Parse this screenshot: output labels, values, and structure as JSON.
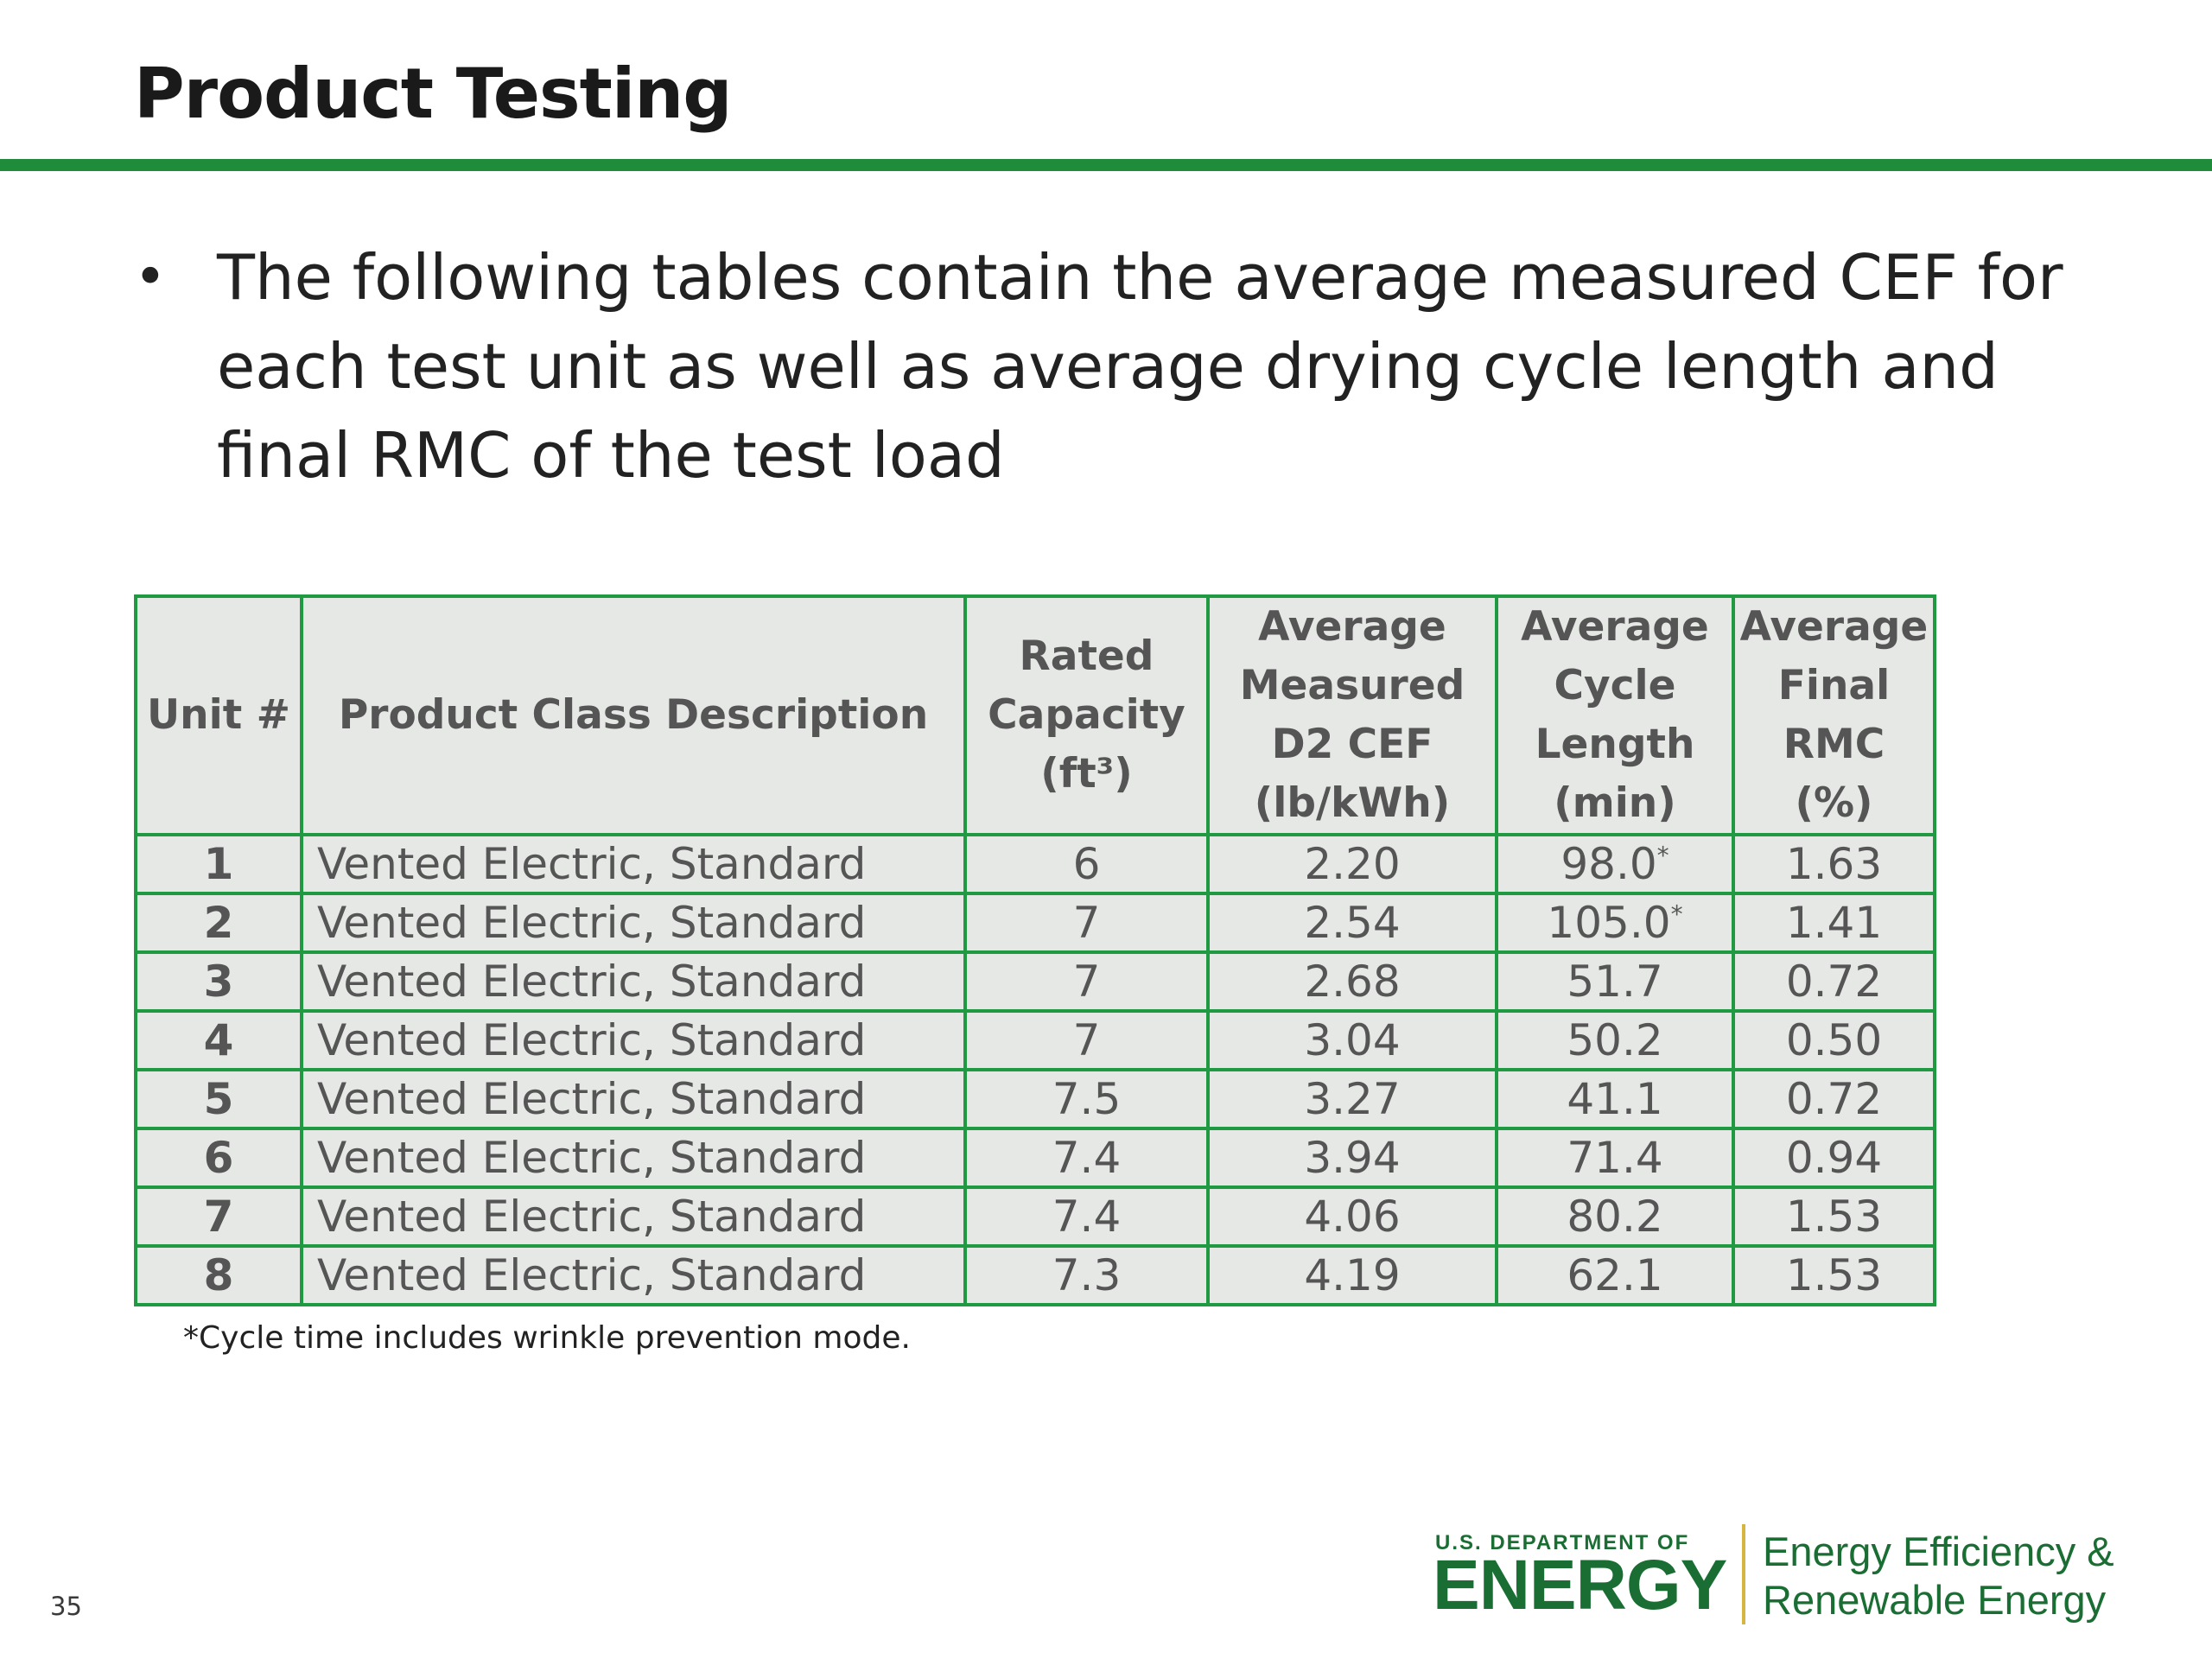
{
  "slide": {
    "title": "Product Testing",
    "page_number": "35"
  },
  "bullets": [
    "The following tables contain the average measured CEF for each test unit as well as average drying cycle length and final RMC of the test load"
  ],
  "table": {
    "headers": [
      [
        "Unit #"
      ],
      [
        "Product Class Description"
      ],
      [
        "Rated",
        "Capacity",
        "(ft³)"
      ],
      [
        "Average",
        "Measured",
        "D2 CEF",
        "(lb/kWh)"
      ],
      [
        "Average",
        "Cycle",
        "Length",
        "(min)"
      ],
      [
        "Average",
        "Final",
        "RMC",
        "(%)"
      ]
    ],
    "rows": [
      {
        "unit": "1",
        "description": "Vented Electric, Standard",
        "capacity": "6",
        "cef": "2.20",
        "cycle_length": "98.0",
        "cycle_mark": "*",
        "rmc": "1.63"
      },
      {
        "unit": "2",
        "description": "Vented Electric, Standard",
        "capacity": "7",
        "cef": "2.54",
        "cycle_length": "105.0",
        "cycle_mark": "*",
        "rmc": "1.41"
      },
      {
        "unit": "3",
        "description": "Vented Electric, Standard",
        "capacity": "7",
        "cef": "2.68",
        "cycle_length": "51.7",
        "cycle_mark": "",
        "rmc": "0.72"
      },
      {
        "unit": "4",
        "description": "Vented Electric, Standard",
        "capacity": "7",
        "cef": "3.04",
        "cycle_length": "50.2",
        "cycle_mark": "",
        "rmc": "0.50"
      },
      {
        "unit": "5",
        "description": "Vented Electric, Standard",
        "capacity": "7.5",
        "cef": "3.27",
        "cycle_length": "41.1",
        "cycle_mark": "",
        "rmc": "0.72"
      },
      {
        "unit": "6",
        "description": "Vented Electric, Standard",
        "capacity": "7.4",
        "cef": "3.94",
        "cycle_length": "71.4",
        "cycle_mark": "",
        "rmc": "0.94"
      },
      {
        "unit": "7",
        "description": "Vented Electric, Standard",
        "capacity": "7.4",
        "cef": "4.06",
        "cycle_length": "80.2",
        "cycle_mark": "",
        "rmc": "1.53"
      },
      {
        "unit": "8",
        "description": "Vented Electric, Standard",
        "capacity": "7.3",
        "cef": "4.19",
        "cycle_length": "62.1",
        "cycle_mark": "",
        "rmc": "1.53"
      }
    ],
    "footnote": "*Cycle time includes wrinkle prevention mode."
  },
  "logo": {
    "agency_line": "U.S. DEPARTMENT OF",
    "agency_name": "ENERGY",
    "office_line1": "Energy Efficiency &",
    "office_line2": "Renewable Energy"
  },
  "colors": {
    "accent_green": "#1f8c3c",
    "table_border": "#1f9a42",
    "table_fill": "#e6e8e6",
    "logo_green": "#1b6e33",
    "logo_divider": "#d6b640"
  }
}
